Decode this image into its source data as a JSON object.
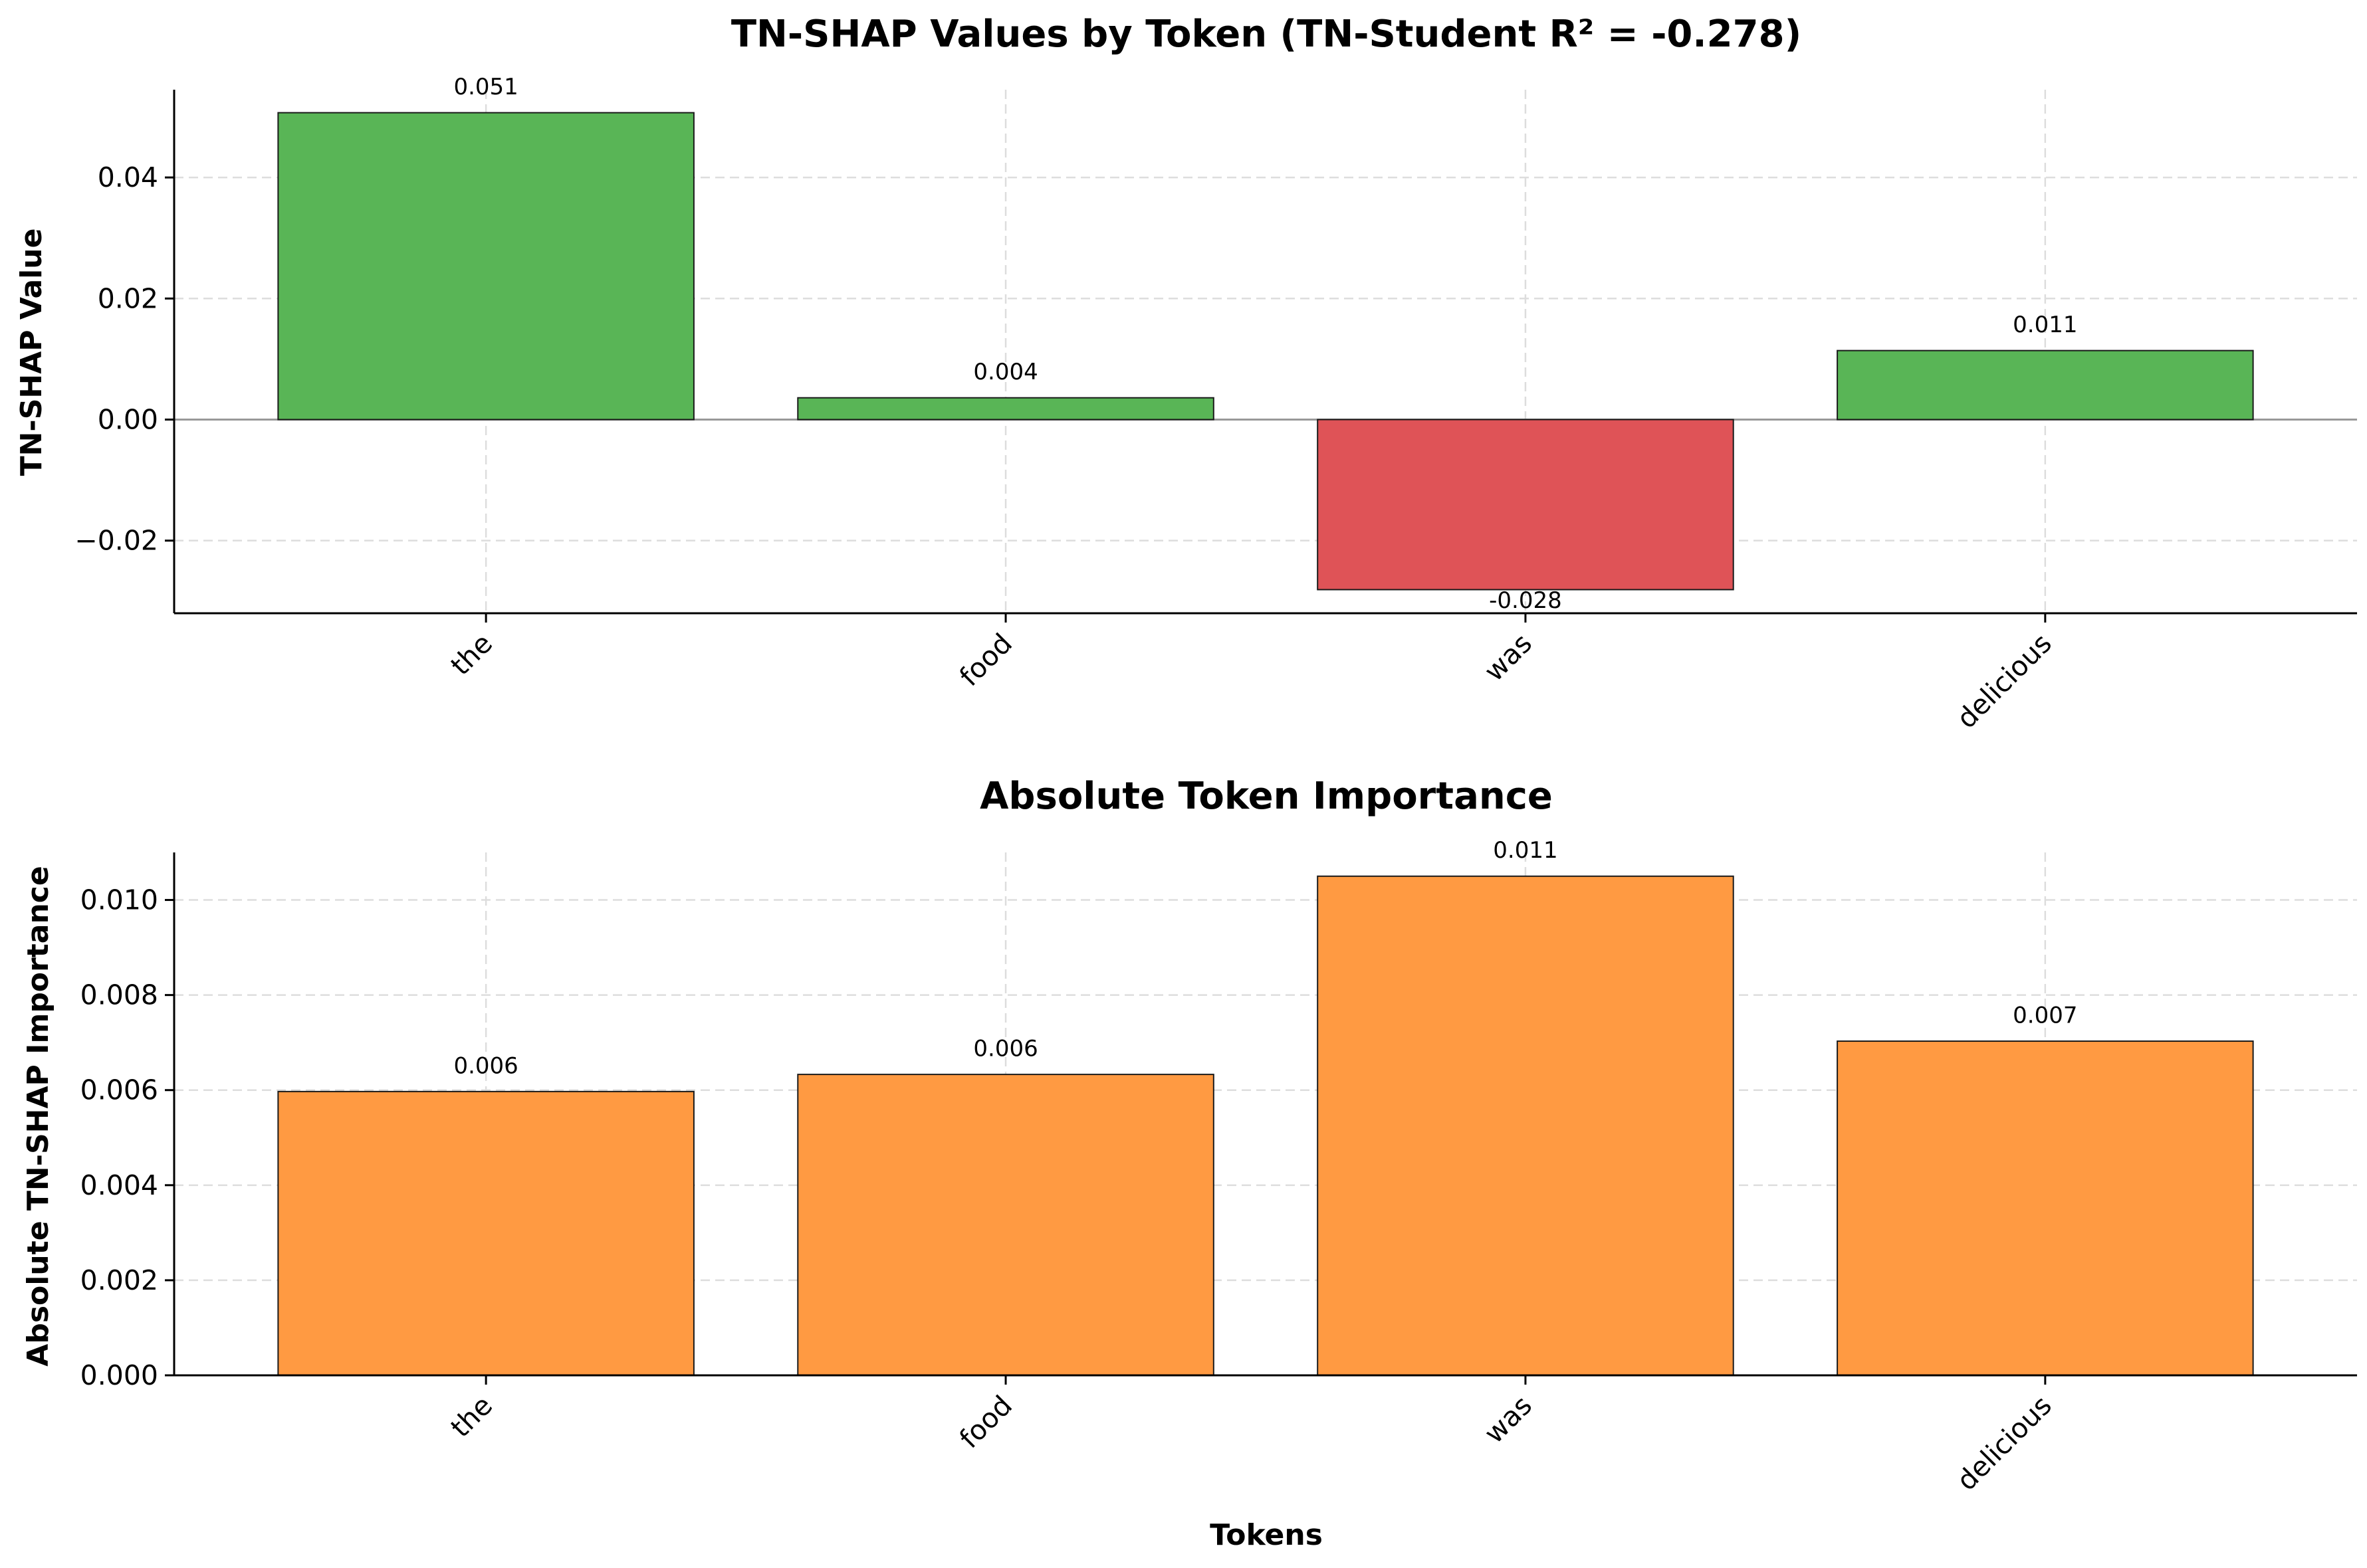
{
  "chart_data": [
    {
      "type": "bar",
      "title": "TN-SHAP Values by Token (TN-Student R² = -0.278)",
      "xlabel": "",
      "ylabel": "TN-SHAP Value",
      "categories": [
        "the",
        "food",
        "was",
        "delicious"
      ],
      "values": [
        0.0507,
        0.0036,
        -0.0281,
        0.0114
      ],
      "data_labels": [
        "0.051",
        "0.004",
        "-0.028",
        "0.011"
      ],
      "ylim": [
        -0.032,
        0.0545
      ],
      "yticks": [
        -0.02,
        0.0,
        0.02,
        0.04
      ],
      "ytick_labels": [
        "−0.02",
        "0.00",
        "0.02",
        "0.04"
      ],
      "grid": true,
      "zero_line": true,
      "colors": {
        "positive": "#59b556",
        "negative": "#df5357"
      }
    },
    {
      "type": "bar",
      "title": "Absolute Token Importance",
      "xlabel": "Tokens",
      "ylabel": "Absolute TN-SHAP Importance",
      "categories": [
        "the",
        "food",
        "was",
        "delicious"
      ],
      "values": [
        0.00597,
        0.00633,
        0.0105,
        0.00703
      ],
      "data_labels": [
        "0.006",
        "0.006",
        "0.011",
        "0.007"
      ],
      "ylim": [
        0.0,
        0.011
      ],
      "yticks": [
        0.0,
        0.002,
        0.004,
        0.006,
        0.008,
        0.01
      ],
      "ytick_labels": [
        "0.000",
        "0.002",
        "0.004",
        "0.006",
        "0.008",
        "0.010"
      ],
      "grid": true,
      "colors": {
        "bar": "#ff9a42"
      }
    }
  ],
  "colors": {
    "edge": "#1a1a1a",
    "grid": "#dddddd",
    "zero_line": "#999999"
  }
}
